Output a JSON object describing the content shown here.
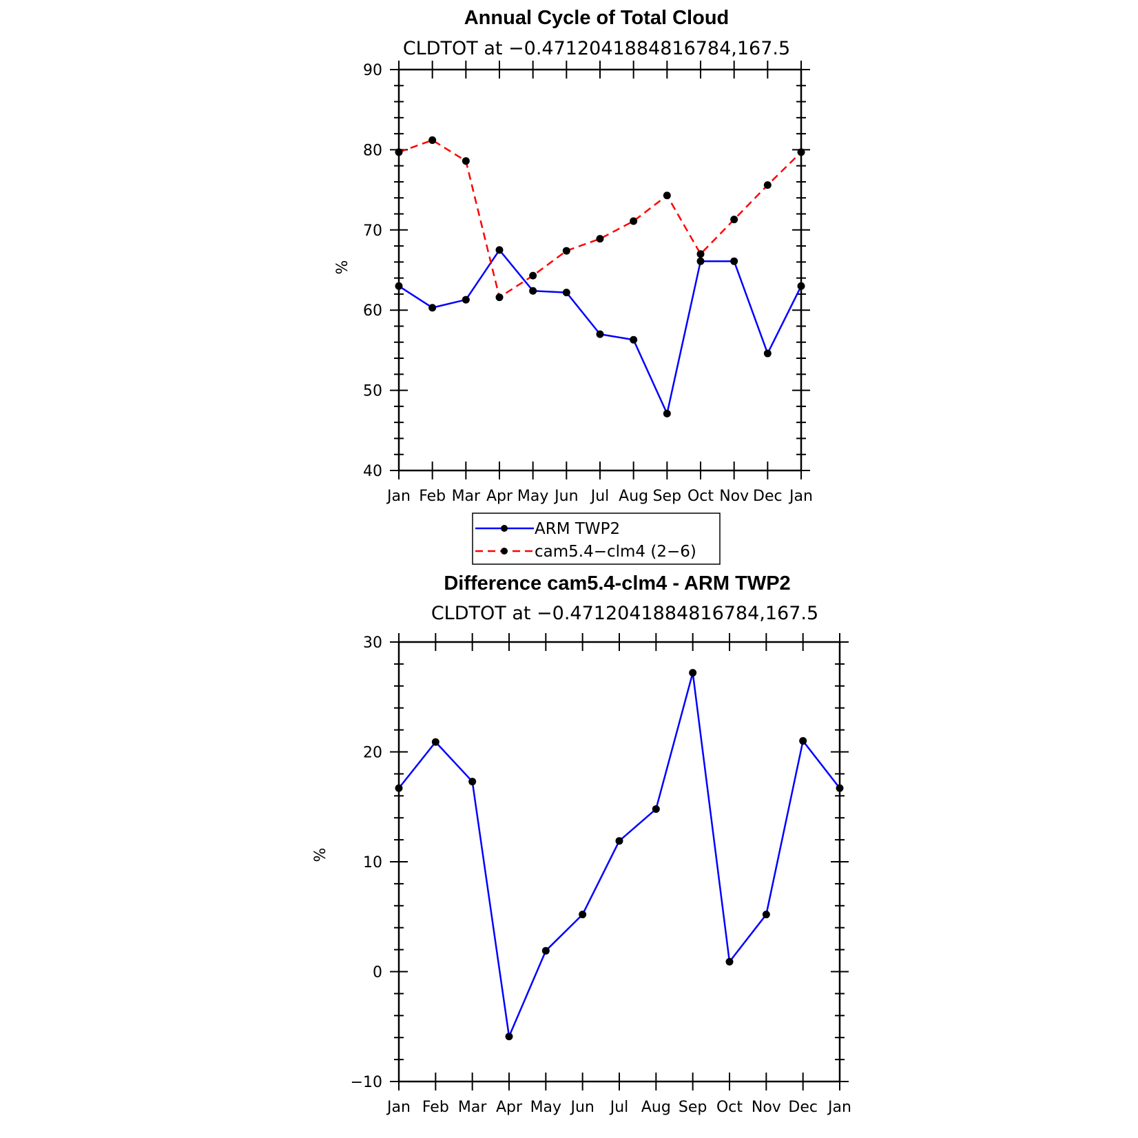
{
  "chart_data": [
    {
      "type": "line",
      "title": "Annual Cycle of Total Cloud",
      "subtitle": "CLDTOT at −0.4712041884816784,167.5",
      "ylabel": "%",
      "ylim": [
        40,
        90
      ],
      "yticks": [
        "40",
        "50",
        "60",
        "70",
        "80",
        "90"
      ],
      "categories": [
        "Jan",
        "Feb",
        "Mar",
        "Apr",
        "May",
        "Jun",
        "Jul",
        "Aug",
        "Sep",
        "Oct",
        "Nov",
        "Dec",
        "Jan"
      ],
      "series": [
        {
          "name": "ARM TWP2",
          "color": "#0000ff",
          "dash": "solid",
          "values": [
            63.0,
            60.3,
            61.3,
            67.5,
            62.4,
            62.2,
            57.0,
            56.3,
            47.1,
            66.1,
            66.1,
            54.6,
            63.0
          ]
        },
        {
          "name": "cam5.4−clm4 (2−6)",
          "color": "#ff0000",
          "dash": "dashed",
          "values": [
            79.7,
            81.2,
            78.6,
            61.6,
            64.3,
            67.4,
            68.9,
            71.1,
            74.3,
            67.0,
            71.3,
            75.6,
            79.7
          ]
        }
      ],
      "legend": "bottom-center"
    },
    {
      "type": "line",
      "title": "Difference cam5.4-clm4 - ARM TWP2",
      "subtitle": "CLDTOT at −0.4712041884816784,167.5",
      "ylabel": "%",
      "ylim": [
        -10,
        30
      ],
      "yticks": [
        "−10",
        "0",
        "10",
        "20",
        "30"
      ],
      "categories": [
        "Jan",
        "Feb",
        "Mar",
        "Apr",
        "May",
        "Jun",
        "Jul",
        "Aug",
        "Sep",
        "Oct",
        "Nov",
        "Dec",
        "Jan"
      ],
      "series": [
        {
          "color": "#0000ff",
          "dash": "solid",
          "values": [
            16.7,
            20.9,
            17.3,
            -5.9,
            1.9,
            5.2,
            11.9,
            14.8,
            27.2,
            0.9,
            5.2,
            21.0,
            16.7
          ]
        }
      ]
    }
  ]
}
